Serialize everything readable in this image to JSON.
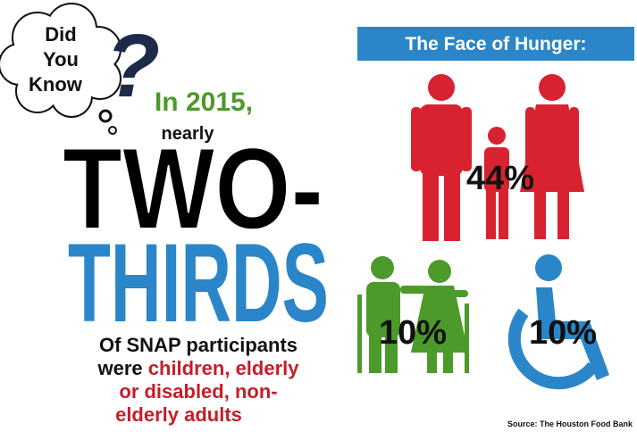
{
  "bubble": {
    "lines": [
      "Did",
      "You",
      "Know"
    ],
    "mark": "?"
  },
  "headline": {
    "year": "In 2015,",
    "qualifier": "nearly",
    "big_1": "TWO-",
    "big_2": "THIRDS"
  },
  "body": {
    "lines": [
      [
        "Of SNAP participants"
      ],
      [
        "were ",
        "children, elderly"
      ],
      [
        "or disabled, non-"
      ],
      [
        "elderly adults"
      ]
    ]
  },
  "panel": {
    "title": "The Face of Hunger:",
    "groups": [
      {
        "label": "44%"
      },
      {
        "label": "10%"
      },
      {
        "label": "10%"
      }
    ]
  },
  "source": "Source: The Houston Food Bank"
}
